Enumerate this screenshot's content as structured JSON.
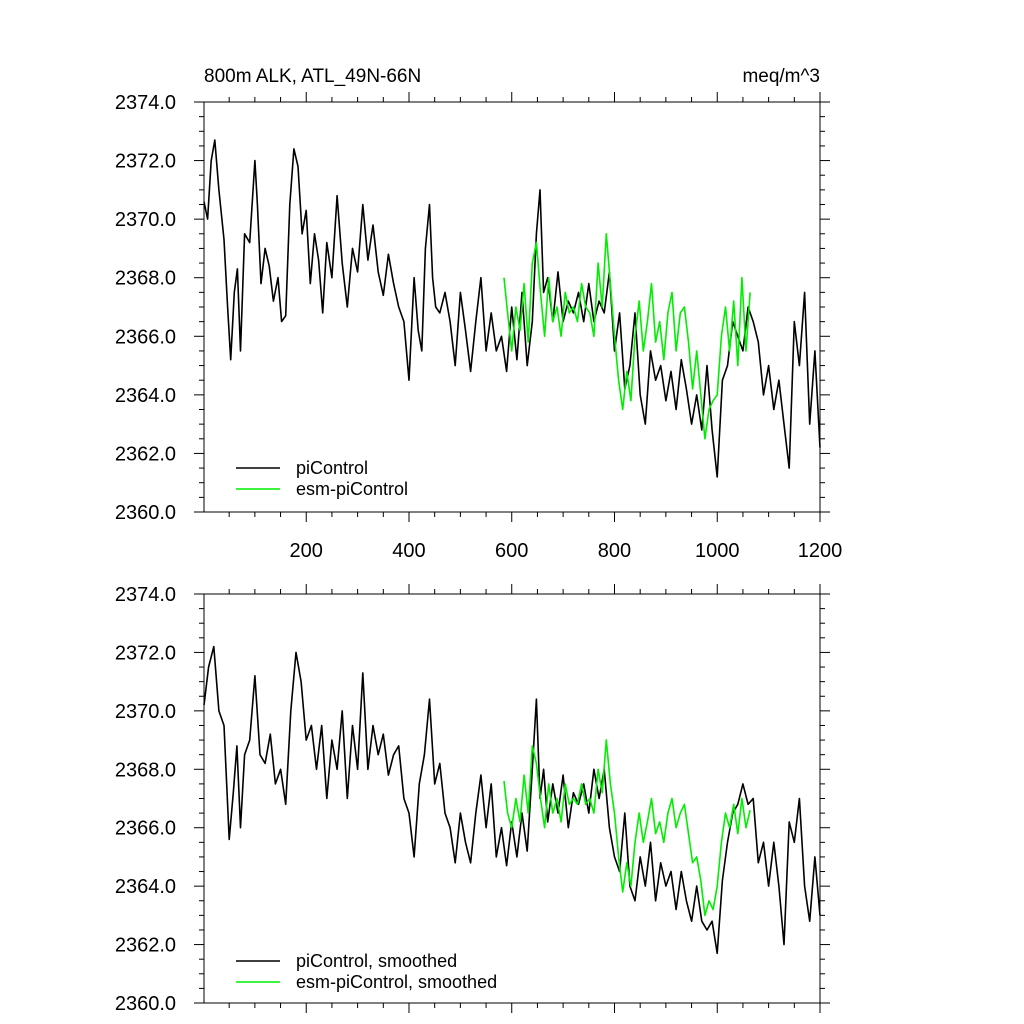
{
  "chart_data": [
    {
      "type": "line",
      "title_left": "800m ALK, ATL_49N-66N",
      "title_right": "meq/m^3",
      "xlabel": "",
      "ylabel": "",
      "xlim": [
        1,
        1200
      ],
      "ylim": [
        2360,
        2374
      ],
      "xticks": [
        200,
        400,
        600,
        800,
        1000,
        1200
      ],
      "xtick_labels": [
        "200",
        "400",
        "600",
        "800",
        "1000",
        "1200"
      ],
      "yticks": [
        2360,
        2362,
        2364,
        2366,
        2368,
        2370,
        2372,
        2374
      ],
      "ytick_labels": [
        "2360.0",
        "2362.0",
        "2364.0",
        "2366.0",
        "2368.0",
        "2370.0",
        "2372.0",
        "2374.0"
      ],
      "legend": "bottom-left",
      "series": [
        {
          "name": "piControl",
          "color": "#000000",
          "x": [
            1,
            8,
            15,
            22,
            30,
            40,
            47,
            53,
            60,
            66,
            72,
            80,
            90,
            100,
            105,
            112,
            120,
            128,
            136,
            145,
            152,
            160,
            168,
            176,
            184,
            192,
            200,
            208,
            216,
            224,
            232,
            240,
            250,
            260,
            270,
            280,
            290,
            300,
            310,
            320,
            330,
            340,
            350,
            360,
            370,
            380,
            390,
            400,
            410,
            418,
            425,
            432,
            440,
            446,
            452,
            460,
            470,
            480,
            490,
            500,
            510,
            520,
            530,
            540,
            550,
            560,
            570,
            580,
            590,
            600,
            610,
            620,
            630,
            640,
            648,
            655,
            662,
            670,
            680,
            690,
            700,
            710,
            720,
            730,
            740,
            750,
            760,
            770,
            780,
            790,
            800,
            810,
            820,
            830,
            840,
            850,
            860,
            870,
            880,
            890,
            900,
            910,
            920,
            930,
            940,
            950,
            960,
            970,
            980,
            990,
            1000,
            1010,
            1020,
            1030,
            1040,
            1050,
            1060,
            1070,
            1080,
            1090,
            1100,
            1110,
            1120,
            1130,
            1140,
            1150,
            1160,
            1170,
            1180,
            1190,
            1200
          ],
          "values": [
            2370.6,
            2370.0,
            2372.0,
            2372.7,
            2371.0,
            2369.3,
            2367.0,
            2365.2,
            2367.5,
            2368.3,
            2365.5,
            2369.5,
            2369.2,
            2372.0,
            2370.5,
            2367.8,
            2369.0,
            2368.4,
            2367.2,
            2368.0,
            2366.5,
            2366.7,
            2370.5,
            2372.4,
            2371.8,
            2369.5,
            2370.3,
            2367.8,
            2369.5,
            2368.6,
            2366.8,
            2369.2,
            2368.0,
            2370.8,
            2368.5,
            2367.0,
            2369.0,
            2368.2,
            2370.5,
            2368.6,
            2369.8,
            2368.2,
            2367.4,
            2368.8,
            2367.8,
            2367.0,
            2366.5,
            2364.5,
            2368.0,
            2366.2,
            2365.5,
            2369.0,
            2370.5,
            2368.0,
            2367.0,
            2366.8,
            2367.5,
            2366.5,
            2365.0,
            2367.5,
            2366.2,
            2364.8,
            2366.5,
            2368.0,
            2365.5,
            2366.8,
            2365.5,
            2366.0,
            2364.8,
            2367.0,
            2365.2,
            2367.5,
            2365.0,
            2366.5,
            2369.5,
            2371.0,
            2367.5,
            2368.0,
            2366.5,
            2368.2,
            2366.5,
            2367.2,
            2366.8,
            2367.5,
            2366.5,
            2367.8,
            2366.5,
            2367.2,
            2366.8,
            2368.2,
            2365.5,
            2366.8,
            2364.2,
            2365.0,
            2366.8,
            2364.0,
            2363.0,
            2365.5,
            2364.5,
            2365.0,
            2363.8,
            2364.8,
            2363.5,
            2365.2,
            2364.2,
            2363.0,
            2364.0,
            2362.8,
            2365.0,
            2362.8,
            2361.2,
            2364.5,
            2365.0,
            2366.5,
            2366.0,
            2365.5,
            2367.0,
            2366.5,
            2365.8,
            2364.0,
            2365.0,
            2363.5,
            2364.5,
            2363.0,
            2361.5,
            2366.5,
            2365.0,
            2367.5,
            2363.0,
            2365.5,
            2362.2
          ]
        },
        {
          "name": "esm-piControl",
          "color": "#00ee00",
          "x": [
            585,
            592,
            600,
            608,
            616,
            624,
            632,
            640,
            648,
            656,
            664,
            672,
            680,
            688,
            696,
            704,
            712,
            720,
            728,
            736,
            744,
            752,
            760,
            768,
            776,
            784,
            792,
            800,
            808,
            816,
            824,
            832,
            840,
            848,
            856,
            864,
            872,
            880,
            888,
            896,
            904,
            912,
            920,
            928,
            936,
            944,
            952,
            960,
            968,
            976,
            984,
            992,
            1000,
            1008,
            1016,
            1024,
            1032,
            1040,
            1048,
            1056,
            1064
          ],
          "values": [
            2368.0,
            2366.8,
            2365.5,
            2367.0,
            2366.2,
            2367.8,
            2365.8,
            2368.5,
            2369.2,
            2367.5,
            2366.0,
            2368.0,
            2366.5,
            2367.0,
            2366.0,
            2367.5,
            2366.8,
            2367.0,
            2366.5,
            2367.8,
            2367.0,
            2366.8,
            2366.0,
            2368.5,
            2367.0,
            2369.5,
            2367.8,
            2366.0,
            2364.5,
            2363.5,
            2364.8,
            2363.8,
            2366.0,
            2367.2,
            2365.5,
            2366.5,
            2367.8,
            2365.8,
            2366.5,
            2365.2,
            2366.8,
            2367.5,
            2365.5,
            2366.8,
            2367.0,
            2365.8,
            2364.2,
            2365.5,
            2364.0,
            2362.5,
            2363.5,
            2363.8,
            2364.0,
            2366.0,
            2367.0,
            2365.5,
            2367.2,
            2365.0,
            2368.0,
            2365.5,
            2367.5
          ]
        }
      ]
    },
    {
      "type": "line",
      "title_left": "",
      "title_right": "",
      "xlabel": "",
      "ylabel": "",
      "xlim": [
        1,
        1200
      ],
      "ylim": [
        2360,
        2374
      ],
      "xticks": [
        200,
        400,
        600,
        800,
        1000,
        1200
      ],
      "xtick_labels": [],
      "yticks": [
        2360,
        2362,
        2364,
        2366,
        2368,
        2370,
        2372,
        2374
      ],
      "ytick_labels": [
        "2360.0",
        "2362.0",
        "2364.0",
        "2366.0",
        "2368.0",
        "2370.0",
        "2372.0",
        "2374.0"
      ],
      "legend": "bottom-left",
      "series": [
        {
          "name": "piControl, smoothed",
          "color": "#000000",
          "x": [
            1,
            10,
            20,
            30,
            40,
            50,
            58,
            65,
            72,
            80,
            90,
            100,
            110,
            120,
            130,
            140,
            150,
            160,
            170,
            180,
            190,
            200,
            210,
            220,
            230,
            240,
            250,
            260,
            270,
            280,
            290,
            300,
            310,
            320,
            330,
            340,
            350,
            360,
            370,
            380,
            390,
            400,
            410,
            420,
            430,
            440,
            450,
            460,
            470,
            480,
            490,
            500,
            510,
            520,
            530,
            540,
            550,
            560,
            570,
            580,
            590,
            600,
            610,
            620,
            630,
            640,
            648,
            655,
            662,
            670,
            680,
            690,
            700,
            710,
            720,
            730,
            740,
            750,
            760,
            770,
            780,
            790,
            800,
            810,
            820,
            830,
            840,
            850,
            860,
            870,
            880,
            890,
            900,
            910,
            920,
            930,
            940,
            950,
            960,
            970,
            980,
            990,
            1000,
            1010,
            1020,
            1030,
            1040,
            1050,
            1060,
            1070,
            1080,
            1090,
            1100,
            1110,
            1120,
            1130,
            1140,
            1150,
            1160,
            1170,
            1180,
            1190,
            1200
          ],
          "values": [
            2370.2,
            2371.5,
            2372.2,
            2370.0,
            2369.5,
            2365.6,
            2367.2,
            2368.8,
            2366.0,
            2368.5,
            2369.0,
            2371.2,
            2368.5,
            2368.2,
            2369.2,
            2367.5,
            2368.0,
            2366.8,
            2370.0,
            2372.0,
            2371.0,
            2369.0,
            2369.5,
            2368.0,
            2369.5,
            2367.0,
            2369.0,
            2368.0,
            2370.0,
            2367.0,
            2369.5,
            2368.0,
            2371.3,
            2368.0,
            2369.5,
            2368.5,
            2369.2,
            2367.8,
            2368.5,
            2368.8,
            2367.0,
            2366.5,
            2365.0,
            2367.5,
            2368.5,
            2370.4,
            2367.5,
            2368.2,
            2366.5,
            2366.0,
            2364.8,
            2366.5,
            2365.5,
            2364.8,
            2366.5,
            2367.8,
            2366.0,
            2367.5,
            2365.0,
            2366.0,
            2364.7,
            2366.2,
            2365.0,
            2366.5,
            2365.2,
            2368.0,
            2370.4,
            2367.0,
            2368.0,
            2366.2,
            2367.5,
            2366.5,
            2367.8,
            2366.0,
            2367.2,
            2366.8,
            2367.5,
            2366.5,
            2368.0,
            2367.0,
            2368.0,
            2366.0,
            2365.0,
            2364.5,
            2366.5,
            2364.0,
            2363.5,
            2365.0,
            2364.0,
            2365.5,
            2363.5,
            2364.8,
            2364.0,
            2364.5,
            2363.2,
            2364.5,
            2363.5,
            2362.8,
            2364.0,
            2362.8,
            2362.5,
            2362.8,
            2361.7,
            2364.2,
            2365.5,
            2366.5,
            2366.8,
            2367.5,
            2366.8,
            2367.0,
            2364.8,
            2365.5,
            2364.0,
            2365.5,
            2364.0,
            2362.0,
            2366.2,
            2365.5,
            2367.0,
            2364.0,
            2362.8,
            2365.0,
            2363.0
          ]
        },
        {
          "name": "esm-piControl, smoothed",
          "color": "#00ee00",
          "x": [
            585,
            592,
            600,
            608,
            616,
            624,
            632,
            640,
            648,
            656,
            664,
            672,
            680,
            688,
            696,
            704,
            712,
            720,
            728,
            736,
            744,
            752,
            760,
            768,
            776,
            784,
            792,
            800,
            808,
            816,
            824,
            832,
            840,
            848,
            856,
            864,
            872,
            880,
            888,
            896,
            904,
            912,
            920,
            928,
            936,
            944,
            952,
            960,
            968,
            976,
            984,
            992,
            1000,
            1008,
            1016,
            1024,
            1032,
            1040,
            1048,
            1056,
            1064
          ],
          "values": [
            2367.6,
            2366.5,
            2366.0,
            2367.0,
            2366.2,
            2367.8,
            2366.5,
            2368.8,
            2368.2,
            2367.0,
            2366.0,
            2367.5,
            2366.5,
            2367.0,
            2366.2,
            2367.5,
            2366.8,
            2367.0,
            2366.8,
            2367.5,
            2366.8,
            2367.0,
            2366.5,
            2368.0,
            2367.2,
            2369.0,
            2367.5,
            2366.5,
            2365.0,
            2363.8,
            2364.8,
            2364.0,
            2365.5,
            2366.5,
            2365.5,
            2366.2,
            2367.0,
            2365.8,
            2366.2,
            2365.5,
            2366.5,
            2367.0,
            2366.0,
            2366.5,
            2366.8,
            2365.8,
            2364.8,
            2365.0,
            2364.2,
            2363.0,
            2363.5,
            2363.2,
            2364.0,
            2365.5,
            2366.5,
            2366.0,
            2366.8,
            2365.8,
            2367.0,
            2366.0,
            2366.6
          ]
        }
      ]
    }
  ]
}
